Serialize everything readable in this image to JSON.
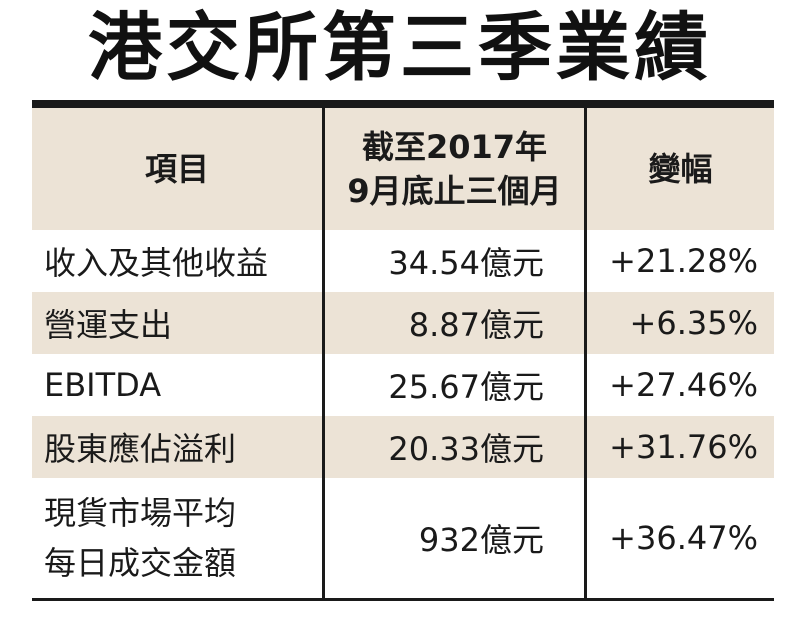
{
  "title": "港交所第三季業績",
  "chart_data": {
    "type": "table",
    "columns": [
      "項目",
      "截至2017年\n9月底止三個月",
      "變幅"
    ],
    "header_col2_lines": [
      "截至2017年",
      "9月底止三個月"
    ],
    "rows": [
      {
        "item": "收入及其他收益",
        "value": "34.54億元",
        "change": "+21.28%"
      },
      {
        "item": "營運支出",
        "value": "8.87億元",
        "change": "+6.35%"
      },
      {
        "item": "EBITDA",
        "value": "25.67億元",
        "change": "+27.46%"
      },
      {
        "item": "股東應佔溢利",
        "value": "20.33億元",
        "change": "+31.76%"
      },
      {
        "item_lines": [
          "現貨市場平均",
          "每日成交金額"
        ],
        "value": "932億元",
        "change": "+36.47%"
      }
    ]
  },
  "colors": {
    "header_bg": "#ece3d6",
    "rule": "#1a1a1a"
  }
}
